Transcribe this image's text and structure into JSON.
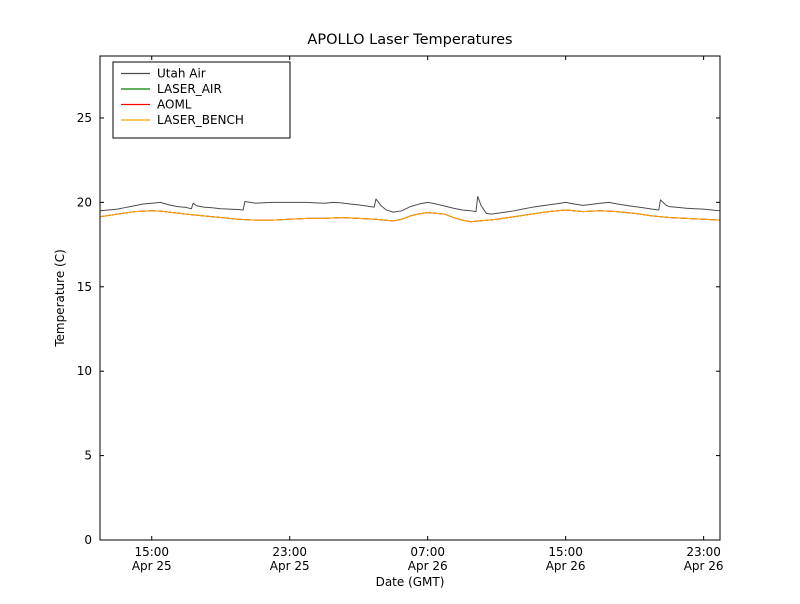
{
  "chart_data": {
    "type": "line",
    "title": "APOLLO Laser Temperatures",
    "xlabel": "Date (GMT)",
    "ylabel": "Temperature (C)",
    "background": "#ffffff",
    "frame_color": "#000000",
    "grid": false,
    "legend_position": "upper left",
    "x_unit": "hours since Apr 25 00:00 GMT",
    "xlim": [
      12,
      47.95
    ],
    "ylim": [
      0,
      28.67
    ],
    "yticks": [
      0,
      5,
      10,
      15,
      20,
      25
    ],
    "xticks": [
      {
        "pos": 15,
        "line1": "15:00",
        "line2": "Apr 25"
      },
      {
        "pos": 23,
        "line1": "23:00",
        "line2": "Apr 25"
      },
      {
        "pos": 31,
        "line1": "07:00",
        "line2": "Apr 26"
      },
      {
        "pos": 39,
        "line1": "15:00",
        "line2": "Apr 26"
      },
      {
        "pos": 47,
        "line1": "23:00",
        "line2": "Apr 26"
      }
    ],
    "series": [
      {
        "name": "Utah Air",
        "color": "#4c4c4c",
        "points": [
          [
            12,
            19.5
          ],
          [
            12.5,
            19.55
          ],
          [
            13,
            19.6
          ],
          [
            13.5,
            19.7
          ],
          [
            14,
            19.8
          ],
          [
            14.5,
            19.9
          ],
          [
            15,
            19.95
          ],
          [
            15.5,
            20.0
          ],
          [
            16,
            19.85
          ],
          [
            16.5,
            19.75
          ],
          [
            17,
            19.7
          ],
          [
            17.3,
            19.62
          ],
          [
            17.4,
            19.95
          ],
          [
            17.6,
            19.8
          ],
          [
            18,
            19.72
          ],
          [
            18.5,
            19.68
          ],
          [
            19,
            19.62
          ],
          [
            19.5,
            19.6
          ],
          [
            20,
            19.58
          ],
          [
            20.3,
            19.55
          ],
          [
            20.4,
            20.05
          ],
          [
            21,
            19.95
          ],
          [
            21.5,
            19.98
          ],
          [
            22,
            20.0
          ],
          [
            23,
            20.0
          ],
          [
            24,
            20.0
          ],
          [
            24.5,
            19.97
          ],
          [
            25,
            19.95
          ],
          [
            25.5,
            20.0
          ],
          [
            26,
            19.97
          ],
          [
            26.5,
            19.9
          ],
          [
            27,
            19.85
          ],
          [
            27.5,
            19.78
          ],
          [
            27.9,
            19.72
          ],
          [
            28,
            20.2
          ],
          [
            28.3,
            19.8
          ],
          [
            28.6,
            19.55
          ],
          [
            29,
            19.42
          ],
          [
            29.5,
            19.5
          ],
          [
            30,
            19.75
          ],
          [
            30.5,
            19.9
          ],
          [
            31,
            20.0
          ],
          [
            31.5,
            19.9
          ],
          [
            32,
            19.78
          ],
          [
            32.5,
            19.65
          ],
          [
            33,
            19.55
          ],
          [
            33.5,
            19.5
          ],
          [
            33.8,
            19.45
          ],
          [
            33.9,
            20.35
          ],
          [
            34.1,
            19.8
          ],
          [
            34.4,
            19.35
          ],
          [
            34.7,
            19.3
          ],
          [
            35,
            19.35
          ],
          [
            35.5,
            19.42
          ],
          [
            36,
            19.5
          ],
          [
            36.5,
            19.6
          ],
          [
            37,
            19.7
          ],
          [
            37.5,
            19.78
          ],
          [
            38,
            19.85
          ],
          [
            38.5,
            19.92
          ],
          [
            39,
            20.0
          ],
          [
            39.5,
            19.9
          ],
          [
            40,
            19.82
          ],
          [
            40.5,
            19.88
          ],
          [
            41,
            19.95
          ],
          [
            41.5,
            20.0
          ],
          [
            42,
            19.9
          ],
          [
            42.5,
            19.82
          ],
          [
            43,
            19.75
          ],
          [
            43.5,
            19.68
          ],
          [
            44,
            19.6
          ],
          [
            44.4,
            19.55
          ],
          [
            44.5,
            20.15
          ],
          [
            44.8,
            19.85
          ],
          [
            45,
            19.75
          ],
          [
            45.5,
            19.7
          ],
          [
            46,
            19.65
          ],
          [
            46.5,
            19.62
          ],
          [
            47,
            19.6
          ],
          [
            47.5,
            19.55
          ],
          [
            47.95,
            19.5
          ]
        ]
      },
      {
        "name": "LASER_AIR",
        "color": "#008000",
        "points": [
          [
            12,
            19.15
          ],
          [
            13,
            19.3
          ],
          [
            14,
            19.45
          ],
          [
            15,
            19.5
          ],
          [
            15.5,
            19.48
          ],
          [
            16,
            19.42
          ],
          [
            17,
            19.3
          ],
          [
            18,
            19.2
          ],
          [
            19,
            19.1
          ],
          [
            20,
            19.0
          ],
          [
            21,
            18.95
          ],
          [
            22,
            18.95
          ],
          [
            23,
            19.0
          ],
          [
            24,
            19.05
          ],
          [
            25,
            19.05
          ],
          [
            26,
            19.1
          ],
          [
            27,
            19.05
          ],
          [
            28,
            19.0
          ],
          [
            28.5,
            18.95
          ],
          [
            29,
            18.9
          ],
          [
            29.5,
            19.0
          ],
          [
            30,
            19.2
          ],
          [
            30.5,
            19.32
          ],
          [
            31,
            19.4
          ],
          [
            31.5,
            19.35
          ],
          [
            32,
            19.3
          ],
          [
            32.5,
            19.1
          ],
          [
            33,
            18.95
          ],
          [
            33.5,
            18.85
          ],
          [
            34,
            18.9
          ],
          [
            34.5,
            18.95
          ],
          [
            35,
            19.0
          ],
          [
            36,
            19.15
          ],
          [
            37,
            19.3
          ],
          [
            38,
            19.45
          ],
          [
            39,
            19.55
          ],
          [
            39.5,
            19.5
          ],
          [
            40,
            19.45
          ],
          [
            41,
            19.5
          ],
          [
            42,
            19.45
          ],
          [
            43,
            19.35
          ],
          [
            44,
            19.2
          ],
          [
            45,
            19.1
          ],
          [
            46,
            19.05
          ],
          [
            47,
            19.0
          ],
          [
            47.95,
            18.95
          ]
        ]
      },
      {
        "name": "AOML",
        "color": "#ff0000",
        "points": [
          [
            12,
            19.15
          ],
          [
            13,
            19.3
          ],
          [
            14,
            19.45
          ],
          [
            15,
            19.5
          ],
          [
            15.5,
            19.48
          ],
          [
            16,
            19.42
          ],
          [
            17,
            19.3
          ],
          [
            18,
            19.2
          ],
          [
            19,
            19.1
          ],
          [
            20,
            19.0
          ],
          [
            21,
            18.95
          ],
          [
            22,
            18.95
          ],
          [
            23,
            19.0
          ],
          [
            24,
            19.05
          ],
          [
            25,
            19.05
          ],
          [
            26,
            19.1
          ],
          [
            27,
            19.05
          ],
          [
            28,
            19.0
          ],
          [
            28.5,
            18.95
          ],
          [
            29,
            18.9
          ],
          [
            29.5,
            19.0
          ],
          [
            30,
            19.2
          ],
          [
            30.5,
            19.32
          ],
          [
            31,
            19.4
          ],
          [
            31.5,
            19.35
          ],
          [
            32,
            19.3
          ],
          [
            32.5,
            19.1
          ],
          [
            33,
            18.95
          ],
          [
            33.5,
            18.85
          ],
          [
            34,
            18.9
          ],
          [
            34.5,
            18.95
          ],
          [
            35,
            19.0
          ],
          [
            36,
            19.15
          ],
          [
            37,
            19.3
          ],
          [
            38,
            19.45
          ],
          [
            39,
            19.55
          ],
          [
            39.5,
            19.5
          ],
          [
            40,
            19.45
          ],
          [
            41,
            19.5
          ],
          [
            42,
            19.45
          ],
          [
            43,
            19.35
          ],
          [
            44,
            19.2
          ],
          [
            45,
            19.1
          ],
          [
            46,
            19.05
          ],
          [
            47,
            19.0
          ],
          [
            47.95,
            18.95
          ]
        ]
      },
      {
        "name": "LASER_BENCH",
        "color": "#ffa500",
        "points": [
          [
            12,
            19.15
          ],
          [
            13,
            19.3
          ],
          [
            14,
            19.45
          ],
          [
            15,
            19.5
          ],
          [
            15.5,
            19.48
          ],
          [
            16,
            19.42
          ],
          [
            17,
            19.3
          ],
          [
            18,
            19.2
          ],
          [
            19,
            19.1
          ],
          [
            20,
            19.0
          ],
          [
            21,
            18.95
          ],
          [
            22,
            18.95
          ],
          [
            23,
            19.0
          ],
          [
            24,
            19.05
          ],
          [
            25,
            19.05
          ],
          [
            26,
            19.1
          ],
          [
            27,
            19.05
          ],
          [
            28,
            19.0
          ],
          [
            28.5,
            18.95
          ],
          [
            29,
            18.9
          ],
          [
            29.5,
            19.0
          ],
          [
            30,
            19.2
          ],
          [
            30.5,
            19.32
          ],
          [
            31,
            19.4
          ],
          [
            31.5,
            19.35
          ],
          [
            32,
            19.3
          ],
          [
            32.5,
            19.1
          ],
          [
            33,
            18.95
          ],
          [
            33.5,
            18.85
          ],
          [
            34,
            18.9
          ],
          [
            34.5,
            18.95
          ],
          [
            35,
            19.0
          ],
          [
            36,
            19.15
          ],
          [
            37,
            19.3
          ],
          [
            38,
            19.45
          ],
          [
            39,
            19.55
          ],
          [
            39.5,
            19.5
          ],
          [
            40,
            19.45
          ],
          [
            41,
            19.5
          ],
          [
            42,
            19.45
          ],
          [
            43,
            19.35
          ],
          [
            44,
            19.2
          ],
          [
            45,
            19.1
          ],
          [
            46,
            19.05
          ],
          [
            47,
            19.0
          ],
          [
            47.95,
            18.95
          ]
        ]
      }
    ]
  }
}
